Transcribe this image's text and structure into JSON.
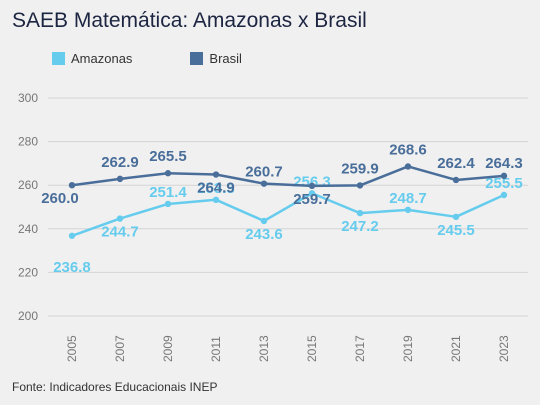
{
  "title": "SAEB Matemática: Amazonas x Brasil",
  "source": "Fonte: Indicadores Educacionais INEP",
  "colors": {
    "amazonas": "#66ccee",
    "brasil": "#4a6e9a",
    "grid": "#d4d4d4",
    "axis_text": "#777777"
  },
  "chart_data": {
    "type": "line",
    "title": "SAEB Matemática: Amazonas x Brasil",
    "xlabel": "",
    "ylabel": "",
    "x": [
      "2005",
      "2007",
      "2009",
      "2011",
      "2013",
      "2015",
      "2017",
      "2019",
      "2021",
      "2023"
    ],
    "ylim": [
      200,
      300
    ],
    "yticks": [
      200,
      220,
      240,
      260,
      280,
      300
    ],
    "grid": true,
    "legend_position": "top-left",
    "series": [
      {
        "name": "Amazonas",
        "color": "#66ccee",
        "values": [
          236.8,
          244.7,
          251.4,
          253.3,
          243.6,
          256.3,
          247.2,
          248.7,
          245.5,
          255.5
        ],
        "labels": [
          "236.8",
          "244.7",
          "251.4",
          "253.3",
          "243.6",
          "256.3",
          "247.2",
          "248.7",
          "245.5",
          "255.5"
        ]
      },
      {
        "name": "Brasil",
        "color": "#4a6e9a",
        "values": [
          260.0,
          262.9,
          265.5,
          264.9,
          260.7,
          259.7,
          259.9,
          268.6,
          262.4,
          264.3
        ],
        "labels": [
          "260.0",
          "262.9",
          "265.5",
          "264.9",
          "260.7",
          "259.7",
          "259.9",
          "268.6",
          "262.4",
          "264.3"
        ]
      }
    ]
  }
}
